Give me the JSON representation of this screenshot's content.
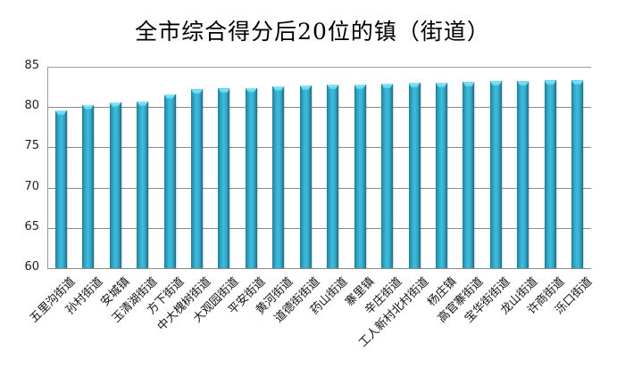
{
  "chart_data": {
    "type": "bar",
    "title": "全市综合得分后20位的镇（街道）",
    "xlabel": "",
    "ylabel": "",
    "ylim": [
      60,
      85
    ],
    "yticks": [
      60,
      65,
      70,
      75,
      80,
      85
    ],
    "grid": true,
    "legend": null,
    "bar_color": "#2fa6c6",
    "categories": [
      "五里沟街道",
      "孙村街道",
      "安城镇",
      "玉清湖街道",
      "方下街道",
      "中大槐树街道",
      "大观园街道",
      "平安街道",
      "黄河街道",
      "道德街街道",
      "药山街道",
      "寨里镇",
      "辛庄街道",
      "工人新村北村街道",
      "杨庄镇",
      "高官寨街道",
      "宝华街街道",
      "龙山街道",
      "许商街道",
      "泺口街道"
    ],
    "values": [
      79.6,
      80.3,
      80.6,
      80.7,
      81.6,
      82.2,
      82.3,
      82.4,
      82.6,
      82.7,
      82.8,
      82.8,
      82.9,
      83.0,
      83.0,
      83.1,
      83.2,
      83.2,
      83.3,
      83.3
    ]
  },
  "yticks_labels": [
    "85",
    "80",
    "75",
    "70",
    "65",
    "60"
  ]
}
